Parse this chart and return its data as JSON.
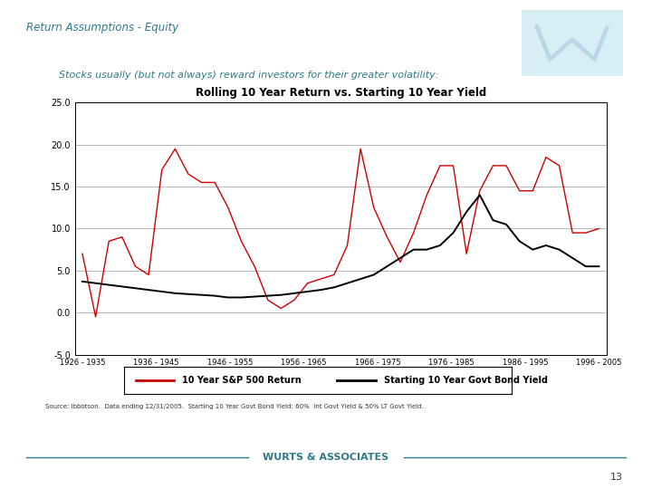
{
  "title": "Rolling 10 Year Return vs. Starting 10 Year Yield",
  "page_title": "Return Assumptions - Equity",
  "subtitle": "Stocks usually (but not always) reward investors for their greater volatility:",
  "footer": "WURTS & ASSOCIATES",
  "source_text": "Source: Ibbotson.  Data ending 12/31/2005.  Starting 10 Year Govt Bond Yield: 60%  Int Govt Yield & 50% LT Govt Yield.",
  "page_number": "13",
  "xlabels": [
    "1926 - 1935",
    "1936 - 1945",
    "1946 - 1955",
    "1956 - 1965",
    "1966 - 1975",
    "1976 - 1985",
    "1986 - 1995",
    "1996 - 2005"
  ],
  "ylim": [
    -5.0,
    25.0
  ],
  "yticks": [
    -5.0,
    0.0,
    5.0,
    10.0,
    15.0,
    20.0,
    25.0
  ],
  "sp500_color": "#cc0000",
  "bond_color": "#000000",
  "sp500_label": "10 Year S&P 500 Return",
  "bond_label": "Starting 10 Year Govt Bond Yield",
  "background_color": "#ffffff",
  "page_title_color": "#2e788a",
  "subtitle_color": "#2e788a",
  "logo_bg": "#d8eef5",
  "logo_color": "#b8d8e8",
  "sp500_data": [
    7.0,
    -0.5,
    8.5,
    9.0,
    5.5,
    4.5,
    17.0,
    19.5,
    16.5,
    15.5,
    15.5,
    12.5,
    8.5,
    5.5,
    1.5,
    0.5,
    1.5,
    3.5,
    4.0,
    4.5,
    8.0,
    19.5,
    12.5,
    9.0,
    6.0,
    9.5,
    14.0,
    17.5,
    17.5,
    7.0,
    14.5,
    17.5,
    17.5,
    14.5,
    14.5,
    18.5,
    17.5,
    9.5,
    9.5,
    10.0
  ],
  "bond_data": [
    3.7,
    3.5,
    3.3,
    3.1,
    2.9,
    2.7,
    2.5,
    2.3,
    2.2,
    2.1,
    2.0,
    1.8,
    1.8,
    1.9,
    2.0,
    2.1,
    2.3,
    2.5,
    2.7,
    3.0,
    3.5,
    4.0,
    4.5,
    5.5,
    6.5,
    7.5,
    7.5,
    8.0,
    9.5,
    12.0,
    14.0,
    11.0,
    10.5,
    8.5,
    7.5,
    8.0,
    7.5,
    6.5,
    5.5,
    5.5
  ]
}
